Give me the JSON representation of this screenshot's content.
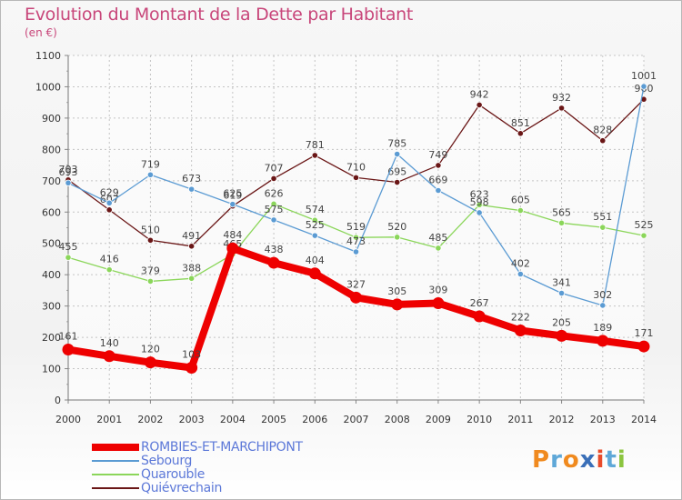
{
  "chart_data": {
    "type": "line",
    "title": "Evolution du Montant de la Dette par Habitant",
    "subtitle": "(en €)",
    "xlabel": "",
    "ylabel": "",
    "ylim": [
      0,
      1100
    ],
    "yticks": [
      0,
      100,
      200,
      300,
      400,
      500,
      600,
      700,
      800,
      900,
      1000,
      1100
    ],
    "categories": [
      "2000",
      "2001",
      "2002",
      "2003",
      "2004",
      "2005",
      "2006",
      "2007",
      "2008",
      "2009",
      "2010",
      "2011",
      "2012",
      "2013",
      "2014"
    ],
    "grid": true,
    "legend_position": "bottom-left",
    "series": [
      {
        "name": "Quiévrechain",
        "color": "#6a1616",
        "values": [
          703,
          607,
          510,
          491,
          619,
          707,
          781,
          710,
          695,
          749,
          942,
          851,
          932,
          828,
          960
        ],
        "labels": [
          "703",
          "607",
          "510",
          "491",
          "619",
          "707",
          "781",
          "710",
          "695",
          "749",
          "942",
          "851",
          "932",
          "828",
          "960"
        ]
      },
      {
        "name": "Quarouble",
        "color": "#8bd65a",
        "values": [
          455,
          416,
          379,
          388,
          465,
          626,
          574,
          519,
          520,
          485,
          623,
          605,
          565,
          551,
          525
        ],
        "labels": [
          "455",
          "416",
          "379",
          "388",
          "465",
          "626",
          "574",
          "519",
          "520",
          "485",
          "623",
          "605",
          "565",
          "551",
          "525"
        ]
      },
      {
        "name": "Sebourg",
        "color": "#5b9bd3",
        "values": [
          693,
          629,
          719,
          673,
          625,
          575,
          525,
          473,
          785,
          669,
          598,
          402,
          341,
          302,
          1001
        ],
        "labels": [
          "693",
          "629",
          "719",
          "673",
          "625",
          "575",
          "525",
          "473",
          "785",
          "669",
          "598",
          "402",
          "341",
          "302",
          "1001"
        ]
      },
      {
        "name": "ROMBIES-ET-MARCHIPONT",
        "color": "#ee0000",
        "values": [
          161,
          140,
          120,
          103,
          484,
          438,
          404,
          327,
          305,
          309,
          267,
          222,
          205,
          189,
          171
        ],
        "labels": [
          "161",
          "140",
          "120",
          "103",
          "484",
          "438",
          "404",
          "327",
          "305",
          "309",
          "267",
          "222",
          "205",
          "189",
          "171"
        ]
      }
    ]
  },
  "legend": [
    {
      "label": "ROMBIES-ET-MARCHIPONT",
      "color": "#ee0000"
    },
    {
      "label": "Sebourg",
      "color": "#5b9bd3"
    },
    {
      "label": "Quarouble",
      "color": "#8bd65a"
    },
    {
      "label": "Quiévrechain",
      "color": "#6a1616"
    }
  ],
  "logo": {
    "text": "Proxiti"
  }
}
